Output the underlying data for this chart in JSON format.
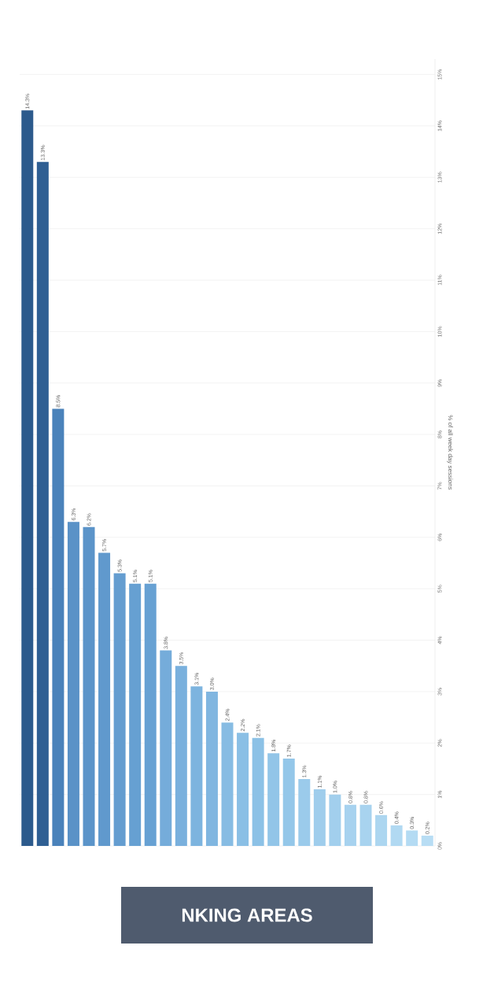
{
  "chart_data": {
    "type": "bar",
    "title": "NKING AREAS",
    "ylabel": "% of all week day sessions",
    "categories": [
      null,
      null,
      null,
      null,
      null,
      null,
      null,
      null,
      null,
      null,
      null,
      null,
      null,
      null,
      null,
      null,
      null,
      null,
      null,
      null,
      null,
      null,
      null,
      null,
      null,
      null,
      null
    ],
    "values": [
      14.3,
      13.3,
      8.5,
      6.3,
      6.2,
      5.7,
      5.3,
      5.1,
      5.1,
      3.8,
      3.5,
      3.1,
      3.0,
      2.4,
      2.2,
      2.1,
      1.8,
      1.7,
      1.3,
      1.1,
      1.0,
      0.8,
      0.8,
      0.6,
      0.4,
      0.3,
      0.2
    ],
    "value_labels": [
      "14.3%",
      "13.3%",
      "8.5%",
      "6.3%",
      "6.2%",
      "5.7%",
      "5.3%",
      "5.1%",
      "5.1%",
      "3.8%",
      "3.5%",
      "3.1%",
      "3.0%",
      "2.4%",
      "2.2%",
      "2.1%",
      "1.8%",
      "1.7%",
      "1.3%",
      "1.1%",
      "1.0%",
      "0.8%",
      "0.8%",
      "0.6%",
      "0.4%",
      "0.3%",
      "0.2%"
    ],
    "colors": [
      "#2c5a8c",
      "#2f5f93",
      "#4a82ba",
      "#5a92c7",
      "#5b94c9",
      "#6099cd",
      "#649dd0",
      "#66a0d2",
      "#67a1d3",
      "#75acda",
      "#79b0dd",
      "#7db4df",
      "#80b6e0",
      "#87bce3",
      "#8abfe5",
      "#8cc1e6",
      "#92c5e8",
      "#94c7e9",
      "#9bcbeb",
      "#9fcdec",
      "#a2cfed",
      "#a7d2ef",
      "#a8d3ef",
      "#acd6f0",
      "#b1d9f2",
      "#b4dbf3",
      "#b8ddf4"
    ],
    "ylim": [
      0,
      15.3
    ],
    "yticks": [
      {
        "value": 0,
        "label": "0%"
      },
      {
        "value": 1,
        "label": "1%"
      },
      {
        "value": 2,
        "label": "2%"
      },
      {
        "value": 3,
        "label": "3%"
      },
      {
        "value": 4,
        "label": "4%"
      },
      {
        "value": 5,
        "label": "5%"
      },
      {
        "value": 6,
        "label": "6%"
      },
      {
        "value": 7,
        "label": "7%"
      },
      {
        "value": 8,
        "label": "8%"
      },
      {
        "value": 9,
        "label": "9%"
      },
      {
        "value": 10,
        "label": "10%"
      },
      {
        "value": 11,
        "label": "11%"
      },
      {
        "value": 12,
        "label": "12%"
      },
      {
        "value": 13,
        "label": "13%"
      },
      {
        "value": 14,
        "label": "14%"
      },
      {
        "value": 15,
        "label": "15%"
      }
    ],
    "grid": "y"
  }
}
